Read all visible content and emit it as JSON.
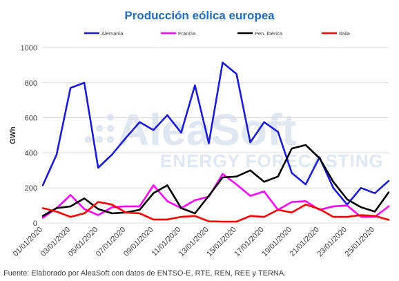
{
  "chart_data": {
    "type": "line",
    "title": "Producción eólica europea",
    "ylabel": "GWh",
    "xlabel": "",
    "ylim": [
      0,
      1000
    ],
    "yticks": [
      0,
      200,
      400,
      600,
      800,
      1000
    ],
    "grid": true,
    "legend_position": "top",
    "x": [
      "01/01/2020",
      "02/01/2020",
      "03/01/2020",
      "04/01/2020",
      "05/01/2020",
      "06/01/2020",
      "07/01/2020",
      "08/01/2020",
      "09/01/2020",
      "10/01/2020",
      "11/01/2020",
      "12/01/2020",
      "13/01/2020",
      "14/01/2020",
      "15/01/2020",
      "16/01/2020",
      "17/01/2020",
      "18/01/2020",
      "19/01/2020",
      "20/01/2020",
      "21/01/2020",
      "22/01/2020",
      "23/01/2020",
      "24/01/2020",
      "25/01/2020",
      "26/01/2020"
    ],
    "x_tick_labels": [
      "01/01/2020",
      "03/01/2020",
      "05/01/2020",
      "07/01/2020",
      "09/01/2020",
      "11/01/2020",
      "13/01/2020",
      "15/01/2020",
      "17/01/2020",
      "19/01/2020",
      "21/01/2020",
      "23/01/2020",
      "25/01/2020"
    ],
    "series": [
      {
        "name": "Alemania",
        "color": "#1a1adb",
        "values": [
          215,
          390,
          770,
          800,
          315,
          390,
          485,
          575,
          530,
          615,
          515,
          785,
          455,
          915,
          850,
          460,
          575,
          520,
          285,
          220,
          375,
          200,
          105,
          200,
          170,
          240
        ]
      },
      {
        "name": "Francia",
        "color": "#ff00ff",
        "values": [
          30,
          85,
          160,
          80,
          45,
          90,
          95,
          95,
          215,
          125,
          85,
          130,
          150,
          280,
          220,
          155,
          180,
          75,
          120,
          125,
          75,
          95,
          100,
          35,
          35,
          95
        ]
      },
      {
        "name": "Pen. Ibérica",
        "color": "#000000",
        "values": [
          40,
          85,
          95,
          140,
          80,
          55,
          60,
          75,
          170,
          215,
          85,
          55,
          155,
          260,
          265,
          300,
          235,
          265,
          425,
          445,
          370,
          235,
          135,
          90,
          65,
          175
        ]
      },
      {
        "name": "Italia",
        "color": "#ff0000",
        "values": [
          85,
          65,
          35,
          55,
          120,
          105,
          60,
          55,
          20,
          20,
          35,
          40,
          10,
          8,
          8,
          40,
          35,
          75,
          60,
          105,
          80,
          35,
          35,
          45,
          40,
          18
        ]
      }
    ]
  },
  "watermark": {
    "brand": "AleaSoft",
    "tagline": "ENERGY FORECASTING"
  },
  "source_text": "Fuente: Elaborado por AleaSoft con datos de ENTSO-E, RTE, REN, REE y TERNA."
}
